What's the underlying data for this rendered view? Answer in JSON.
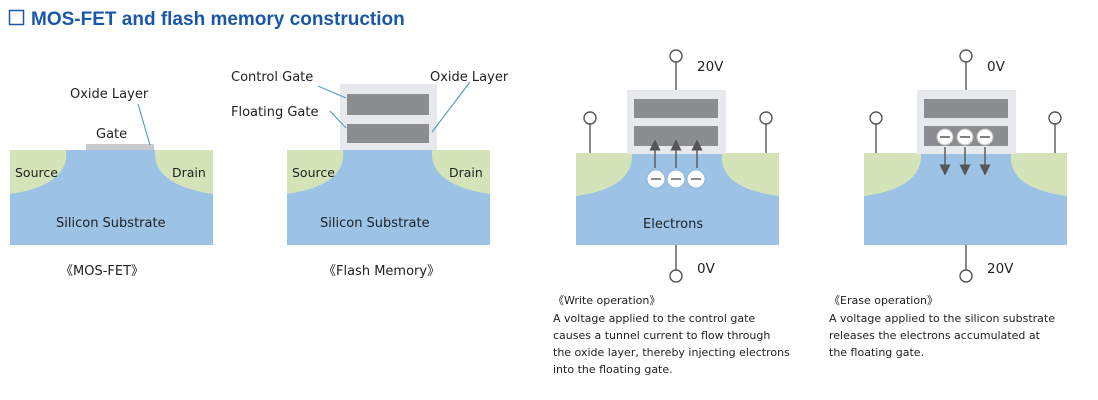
{
  "title": "MOS-FET and flash memory construction",
  "colors": {
    "title": "#1a57a8",
    "substrate": "#9cc3e6",
    "diffusion": "#d5e4b8",
    "gate_housing": "#e8e9ec",
    "gate_plate": "#8b8d90",
    "mos_gate": "#c8c9cc",
    "electron": "#ffffff"
  },
  "mosfet": {
    "gate": "Gate",
    "oxide_layer": "Oxide Layer",
    "source": "Source",
    "drain": "Drain",
    "substrate": "Silicon Substrate",
    "caption": "《MOS-FET》"
  },
  "flash": {
    "control_gate": "Control Gate",
    "oxide_layer": "Oxide Layer",
    "floating_gate": "Floating Gate",
    "source": "Source",
    "drain": "Drain",
    "substrate": "Silicon Substrate",
    "caption": "《Flash Memory》"
  },
  "write": {
    "top_voltage": "20V",
    "bottom_voltage": "0V",
    "electrons_label": "Electrons",
    "caption": "《Write operation》",
    "description": [
      "A voltage applied to the control gate",
      "causes a tunnel current to flow through",
      "the oxide layer, thereby injecting electrons",
      "into the floating gate."
    ]
  },
  "erase": {
    "top_voltage": "0V",
    "bottom_voltage": "20V",
    "caption": "《Erase operation》",
    "description": [
      "A voltage applied to the silicon substrate",
      "releases the electrons accumulated at",
      "the floating gate."
    ]
  }
}
